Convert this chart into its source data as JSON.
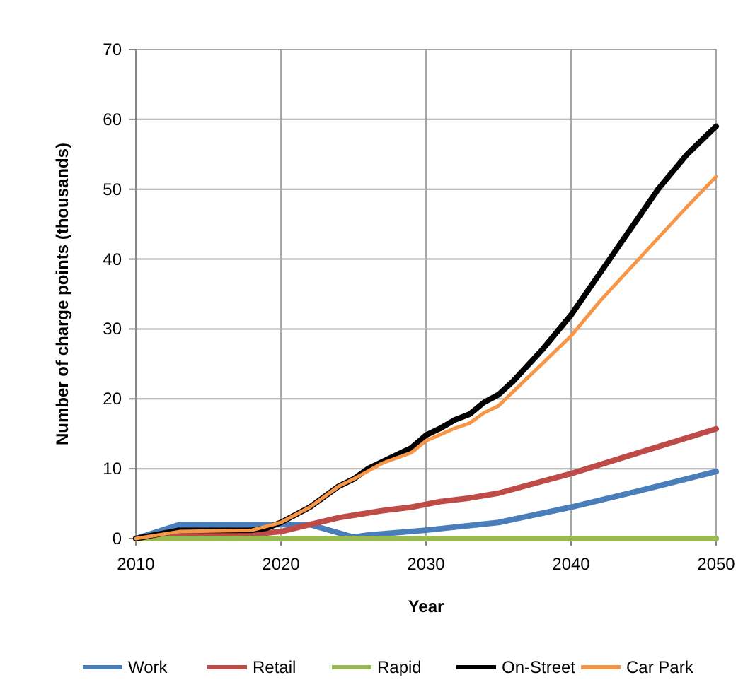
{
  "chart_data": {
    "type": "line",
    "xlabel": "Year",
    "ylabel": "Number of charge points (thousands)",
    "xlim": [
      2010,
      2050
    ],
    "xticks": [
      2010,
      2020,
      2030,
      2040,
      2050
    ],
    "ylim": [
      0,
      70
    ],
    "yticks": [
      0,
      10,
      20,
      30,
      40,
      50,
      60,
      70
    ],
    "grid": true,
    "legend": "bottom",
    "marker": "none",
    "line_style": "solid",
    "series": [
      {
        "name": "Work",
        "color": "#4a7ebb",
        "x": [
          2010,
          2013,
          2020,
          2022,
          2025,
          2026,
          2030,
          2035,
          2040,
          2045,
          2050
        ],
        "values": [
          0,
          2,
          2,
          2,
          0.2,
          0.5,
          1.2,
          2.3,
          4.5,
          7,
          9.6
        ]
      },
      {
        "name": "Retail",
        "color": "#be4b48",
        "x": [
          2010,
          2013,
          2019,
          2020,
          2022,
          2024,
          2027,
          2029,
          2031,
          2033,
          2035,
          2040,
          2045,
          2050
        ],
        "values": [
          0,
          0.8,
          0.8,
          1,
          2,
          3,
          4,
          4.5,
          5.3,
          5.8,
          6.5,
          9.3,
          12.5,
          15.7
        ]
      },
      {
        "name": "Rapid",
        "color": "#98b954",
        "x": [
          2010,
          2020,
          2030,
          2040,
          2050
        ],
        "values": [
          0,
          0,
          0,
          0,
          0
        ]
      },
      {
        "name": "On-Street",
        "color": "#000000",
        "x": [
          2010,
          2013,
          2018,
          2019,
          2020,
          2022,
          2024,
          2025,
          2026,
          2028,
          2029,
          2030,
          2031,
          2032,
          2033,
          2034,
          2035,
          2036,
          2038,
          2040,
          2042,
          2044,
          2046,
          2048,
          2050
        ],
        "values": [
          0,
          1.2,
          1.2,
          1.5,
          2.3,
          4.5,
          7.5,
          8.5,
          10,
          12,
          13,
          14.8,
          15.8,
          17,
          17.8,
          19.5,
          20.6,
          22.5,
          27,
          32,
          38,
          44,
          50,
          55,
          59
        ]
      },
      {
        "name": "Car Park",
        "color": "#f79646",
        "x": [
          2010,
          2013,
          2018,
          2020,
          2022,
          2024,
          2025,
          2027,
          2029,
          2030,
          2032,
          2033,
          2034,
          2035,
          2036,
          2038,
          2040,
          2042,
          2044,
          2046,
          2048,
          2050
        ],
        "values": [
          0,
          1,
          1.2,
          2.3,
          4.5,
          7.5,
          8.5,
          10.8,
          12.3,
          14,
          15.8,
          16.5,
          18,
          19,
          21,
          25,
          29,
          34,
          38.5,
          43,
          47.5,
          51.8
        ]
      }
    ]
  }
}
